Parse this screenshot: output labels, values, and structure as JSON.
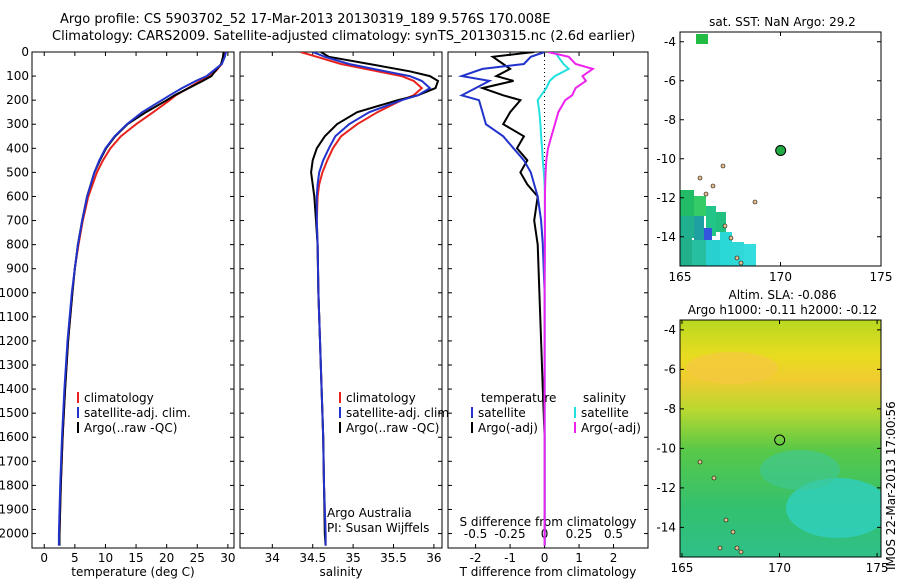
{
  "header": {
    "title_line1": "Argo profile: CS 5903702_52 17-Mar-2013 20130319_189 9.576S 170.008E",
    "title_line2": "Climatology: CARS2009. Satellite-adjusted climatology: synTS_20130315.nc (2.6d earlier)"
  },
  "colors": {
    "climatology": "#e8231d",
    "satellite": "#2233cc",
    "argo": "#000000",
    "sat_salinity": "#22e0e0",
    "argo_salinity": "#ee22ee"
  },
  "depth_ticks": [
    "0",
    "100",
    "200",
    "300",
    "400",
    "500",
    "600",
    "700",
    "800",
    "900",
    "1000",
    "1100",
    "1200",
    "1300",
    "1400",
    "1500",
    "1600",
    "1700",
    "1800",
    "1900",
    "2000"
  ],
  "chart_data": [
    {
      "type": "line",
      "xlabel": "temperature (deg C)",
      "ylabel": "",
      "xlim": [
        -2,
        31
      ],
      "ylim": [
        2060,
        0
      ],
      "x_ticks": [
        "0",
        "5",
        "10",
        "15",
        "20",
        "25",
        "30"
      ],
      "legend": [
        "climatology",
        "satellite-adj. clim.",
        "Argo(..raw -QC)"
      ],
      "depth": [
        0,
        20,
        50,
        80,
        100,
        120,
        150,
        180,
        200,
        250,
        300,
        350,
        400,
        450,
        500,
        600,
        700,
        800,
        900,
        1000,
        1200,
        1400,
        1600,
        1800,
        2000,
        2050
      ],
      "series": [
        {
          "name": "climatology",
          "values": [
            29.6,
            29.4,
            29.0,
            28.0,
            27.0,
            25.5,
            23.5,
            21.5,
            20.5,
            17.8,
            15.0,
            12.5,
            10.8,
            9.6,
            8.6,
            7.2,
            6.3,
            5.6,
            5.0,
            4.6,
            3.9,
            3.4,
            3.0,
            2.7,
            2.5,
            2.4
          ]
        },
        {
          "name": "satellite-adj. clim.",
          "values": [
            29.7,
            29.5,
            29.0,
            27.5,
            26.5,
            24.8,
            22.5,
            20.5,
            19.2,
            16.0,
            13.5,
            11.5,
            10.0,
            9.0,
            8.2,
            7.0,
            6.2,
            5.5,
            5.0,
            4.5,
            3.8,
            3.3,
            2.9,
            2.6,
            2.4,
            2.4
          ]
        },
        {
          "name": "Argo(..raw -QC)",
          "values": [
            29.3,
            29.2,
            28.9,
            27.9,
            27.3,
            25.9,
            23.6,
            21.3,
            20.0,
            16.6,
            13.6,
            11.6,
            10.1,
            9.1,
            8.2,
            7.0,
            6.2,
            5.5,
            5.0,
            4.6,
            3.9,
            3.4,
            3.0,
            2.7,
            2.5,
            2.5
          ]
        }
      ]
    },
    {
      "type": "line",
      "xlabel": "salinity",
      "ylabel": "",
      "xlim": [
        33.6,
        36.1
      ],
      "ylim": [
        2060,
        0
      ],
      "x_ticks": [
        "34",
        "34.5",
        "35",
        "35.5",
        "36"
      ],
      "legend": [
        "climatology",
        "satellite-adj. clim.",
        "Argo(..raw -QC)"
      ],
      "annotation": [
        "Argo Australia",
        "PI: Susan Wijffels"
      ],
      "depth": [
        0,
        20,
        50,
        80,
        100,
        120,
        150,
        180,
        200,
        250,
        300,
        350,
        400,
        450,
        500,
        550,
        600,
        700,
        800,
        1000,
        1200,
        1400,
        1600,
        1800,
        2000,
        2050
      ],
      "series": [
        {
          "name": "climatology",
          "values": [
            34.35,
            34.55,
            34.85,
            35.3,
            35.6,
            35.75,
            35.85,
            35.75,
            35.6,
            35.3,
            35.05,
            34.85,
            34.75,
            34.68,
            34.62,
            34.58,
            34.56,
            34.55,
            34.56,
            34.57,
            34.59,
            34.61,
            34.63,
            34.64,
            34.66,
            34.66
          ]
        },
        {
          "name": "satellite-adj. clim.",
          "values": [
            34.5,
            34.65,
            34.95,
            35.4,
            35.7,
            35.85,
            35.95,
            35.8,
            35.6,
            35.2,
            34.95,
            34.78,
            34.7,
            34.63,
            34.58,
            34.56,
            34.55,
            34.55,
            34.56,
            34.57,
            34.59,
            34.61,
            34.63,
            34.64,
            34.66,
            34.66
          ]
        },
        {
          "name": "Argo(..raw -QC)",
          "values": [
            34.6,
            34.7,
            35.2,
            35.7,
            35.95,
            36.05,
            36.02,
            35.8,
            35.55,
            35.05,
            34.8,
            34.65,
            34.55,
            34.5,
            34.48,
            34.5,
            34.52,
            34.54,
            34.56,
            34.57,
            34.59,
            34.61,
            34.63,
            34.64,
            34.65,
            34.66
          ]
        }
      ]
    },
    {
      "type": "line",
      "xlabel": "T difference from climatology",
      "x2label": "S difference from climatology",
      "ylabel": "",
      "xlim": [
        -2.8,
        3
      ],
      "ylim": [
        2060,
        0
      ],
      "x_ticks": [
        "-2",
        "-1",
        "0",
        "1",
        "2"
      ],
      "x2_ticks": [
        "-0.5",
        "-0.25",
        "0",
        "0.25",
        "0.5"
      ],
      "legend_headers": [
        "temperature",
        "salinity"
      ],
      "legend_temperature": [
        "satellite",
        "Argo(-adj)"
      ],
      "legend_salinity": [
        "satellite",
        "Argo(-adj)"
      ],
      "depth": [
        0,
        20,
        50,
        70,
        100,
        120,
        150,
        180,
        200,
        250,
        300,
        350,
        400,
        450,
        500,
        550,
        600,
        700,
        800,
        1000,
        1200,
        1400,
        1600,
        1800,
        2000,
        2050
      ],
      "series": [
        {
          "name": "temperature satellite",
          "values": [
            0,
            -0.4,
            -0.6,
            -1.8,
            -2.4,
            -1.6,
            -2.0,
            -2.4,
            -1.9,
            -1.8,
            -1.7,
            -1.2,
            -0.9,
            -0.6,
            -0.4,
            -0.3,
            -0.2,
            -0.1,
            -0.05,
            0,
            0,
            0,
            0,
            0,
            0,
            0
          ]
        },
        {
          "name": "temperature Argo(-adj)",
          "values": [
            -0.3,
            -1.5,
            -1.2,
            -1.0,
            -1.4,
            -0.9,
            -1.8,
            -1.2,
            -0.7,
            -1.0,
            -1.2,
            -0.6,
            -0.8,
            -0.5,
            -0.7,
            -0.5,
            -0.2,
            -0.3,
            -0.2,
            -0.15,
            -0.1,
            -0.05,
            0,
            0,
            0,
            0
          ]
        },
        {
          "name": "salinity satellite",
          "values": [
            0.3,
            0.4,
            0.55,
            0.7,
            0.3,
            0.15,
            0.05,
            -0.1,
            -0.2,
            -0.15,
            -0.12,
            -0.1,
            -0.07,
            -0.05,
            -0.02,
            0,
            0.01,
            0.01,
            0.01,
            0,
            0,
            0,
            0,
            0,
            0,
            0
          ]
        },
        {
          "name": "salinity Argo(-adj)",
          "values": [
            0.1,
            0.7,
            0.9,
            1.4,
            1.1,
            1.2,
            0.9,
            0.8,
            0.6,
            0.4,
            0.3,
            0.2,
            0.1,
            0.05,
            0.03,
            0.02,
            0.01,
            0.01,
            0.01,
            0,
            0,
            0,
            0,
            0,
            0,
            0
          ]
        }
      ]
    },
    {
      "type": "heatmap",
      "title": "sat. SST: NaN Argo: 29.2",
      "xlim": [
        165,
        175
      ],
      "ylim": [
        -15.5,
        -3.5
      ],
      "x_ticks": [
        "165",
        "170",
        "175"
      ],
      "y_ticks": [
        "-4",
        "-6",
        "-8",
        "-10",
        "-12",
        "-14"
      ],
      "marker": {
        "lon": 170.008,
        "lat": -9.576
      }
    },
    {
      "type": "heatmap",
      "title": "Altim. SLA: -0.086",
      "subtitle": "Argo h1000: -0.11 h2000: -0.12",
      "xlim": [
        164.9,
        175.2
      ],
      "ylim": [
        -15.5,
        -3.5
      ],
      "x_ticks": [
        "165",
        "170",
        "175"
      ],
      "y_ticks": [
        "-4",
        "-6",
        "-8",
        "-10",
        "-12",
        "-14"
      ],
      "marker": {
        "lon": 170.008,
        "lat": -9.576
      }
    }
  ],
  "footer": {
    "timestamp": "IMOS 22-Mar-2013 17:00:56"
  }
}
